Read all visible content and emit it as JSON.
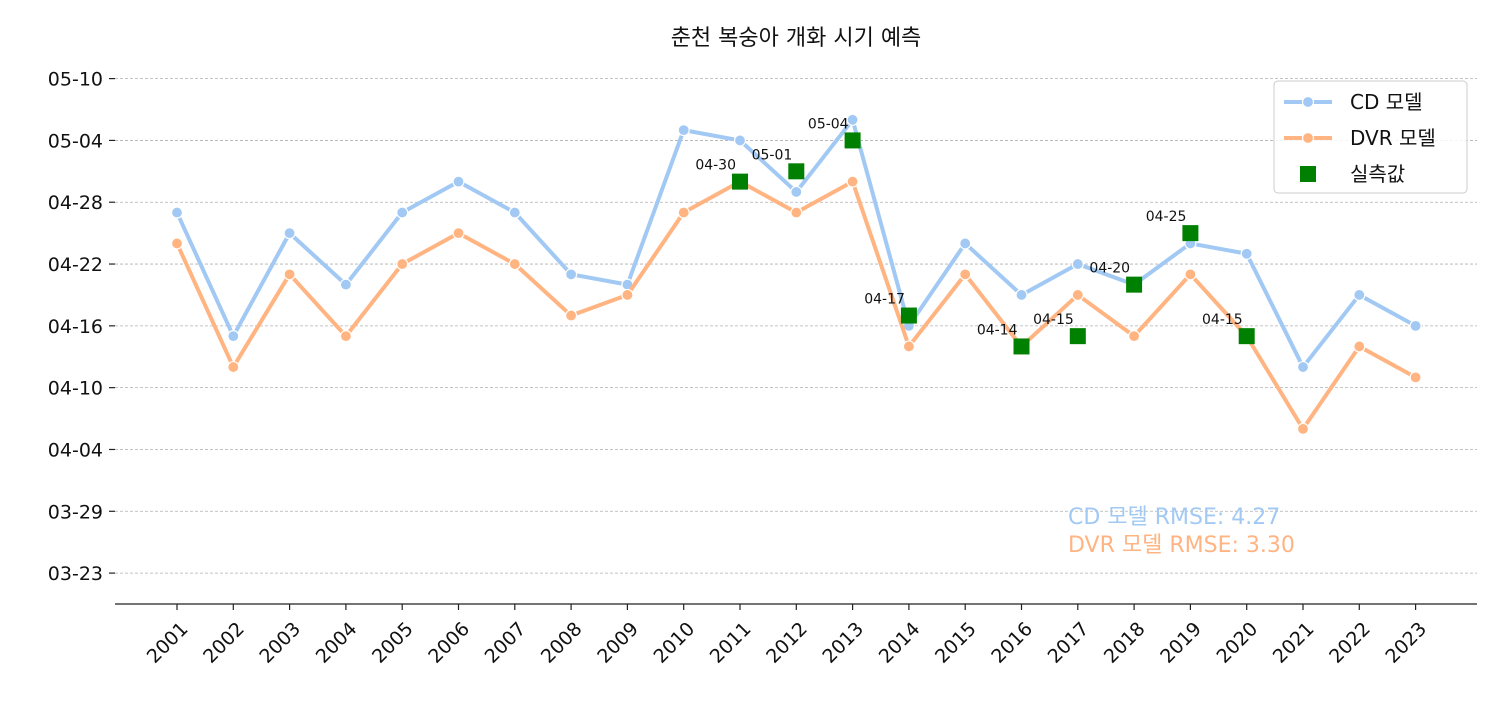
{
  "chart_data": {
    "type": "line",
    "title": "춘천 복숭아 개화 시기 예측",
    "xlabel": "",
    "ylabel": "",
    "x": [
      "2001",
      "2002",
      "2003",
      "2004",
      "2005",
      "2006",
      "2007",
      "2008",
      "2009",
      "2010",
      "2011",
      "2012",
      "2013",
      "2014",
      "2015",
      "2016",
      "2017",
      "2018",
      "2019",
      "2020",
      "2021",
      "2022",
      "2023"
    ],
    "y_ticks": [
      "03-23",
      "03-29",
      "04-04",
      "04-10",
      "04-16",
      "04-22",
      "04-28",
      "05-04",
      "05-10"
    ],
    "y_tick_dates": [
      "2000-03-23",
      "2000-03-29",
      "2000-04-04",
      "2000-04-10",
      "2000-04-16",
      "2000-04-22",
      "2000-04-28",
      "2000-05-04",
      "2000-05-10"
    ],
    "ylim": [
      "2000-03-20",
      "2000-05-12"
    ],
    "grid": "horizontal-dashed",
    "legend_position": "top-right",
    "series": [
      {
        "name": "CD 모델",
        "kind": "line",
        "color": "#a1c9f4",
        "values": [
          "2000-04-27",
          "2000-04-15",
          "2000-04-25",
          "2000-04-20",
          "2000-04-27",
          "2000-04-30",
          "2000-04-27",
          "2000-04-21",
          "2000-04-20",
          "2000-05-05",
          "2000-05-04",
          "2000-04-29",
          "2000-05-06",
          "2000-04-16",
          "2000-04-24",
          "2000-04-19",
          "2000-04-22",
          "2000-04-20",
          "2000-04-24",
          "2000-04-23",
          "2000-04-12",
          "2000-04-19",
          "2000-04-16"
        ]
      },
      {
        "name": "DVR 모델",
        "kind": "line",
        "color": "#ffb482",
        "values": [
          "2000-04-24",
          "2000-04-12",
          "2000-04-21",
          "2000-04-15",
          "2000-04-22",
          "2000-04-25",
          "2000-04-22",
          "2000-04-17",
          "2000-04-19",
          "2000-04-27",
          "2000-04-30",
          "2000-04-27",
          "2000-04-30",
          "2000-04-14",
          "2000-04-21",
          "2000-04-14",
          "2000-04-19",
          "2000-04-15",
          "2000-04-21",
          "2000-04-15",
          "2000-04-06",
          "2000-04-14",
          "2000-04-11"
        ]
      },
      {
        "name": "실측값",
        "kind": "scatter",
        "color": "#008000",
        "points": [
          {
            "x": "2011",
            "y": "2000-04-30",
            "label": "04-30"
          },
          {
            "x": "2012",
            "y": "2000-05-01",
            "label": "05-01"
          },
          {
            "x": "2013",
            "y": "2000-05-04",
            "label": "05-04"
          },
          {
            "x": "2014",
            "y": "2000-04-17",
            "label": "04-17"
          },
          {
            "x": "2016",
            "y": "2000-04-14",
            "label": "04-14"
          },
          {
            "x": "2017",
            "y": "2000-04-15",
            "label": "04-15"
          },
          {
            "x": "2018",
            "y": "2000-04-20",
            "label": "04-20"
          },
          {
            "x": "2019",
            "y": "2000-04-25",
            "label": "04-25"
          },
          {
            "x": "2020",
            "y": "2000-04-15",
            "label": "04-15"
          }
        ]
      }
    ],
    "annotations": [
      {
        "text": "CD 모델 RMSE: 4.27",
        "color": "#a1c9f4"
      },
      {
        "text": "DVR 모델 RMSE: 3.30",
        "color": "#ffb482"
      }
    ]
  }
}
